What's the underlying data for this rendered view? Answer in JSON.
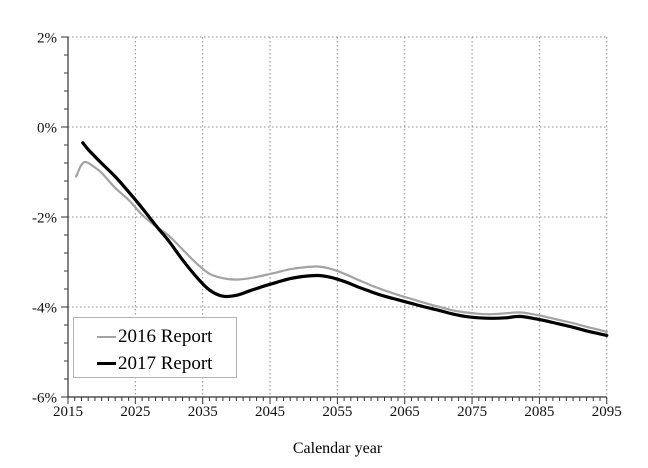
{
  "chart_data": {
    "type": "line",
    "title": "",
    "xlabel": "Calendar year",
    "ylabel": "",
    "x_range": [
      2015,
      2095
    ],
    "y_range": [
      -6,
      2
    ],
    "x_minor_step": 1,
    "y_minor_step": 0.4,
    "grid": "dashed-both-axes",
    "legend_position": "lower-left",
    "colors": {
      "axis": "#333333",
      "grid": "#8c8c8c",
      "text": "#111111",
      "background": "#ffffff",
      "legend_border": "#b3b3b3"
    },
    "xticks": {
      "values": [
        2015,
        2025,
        2035,
        2045,
        2055,
        2065,
        2075,
        2085,
        2095
      ],
      "labels": [
        "2015",
        "2025",
        "2035",
        "2045",
        "2055",
        "2065",
        "2075",
        "2085",
        "2095"
      ]
    },
    "yticks": {
      "values": [
        2,
        0,
        -2,
        -4,
        -6
      ],
      "labels": [
        "2%",
        "0%",
        "-2%",
        "-4%",
        "-6%"
      ]
    },
    "series": [
      {
        "name": "2016 Report",
        "color": "#a3a3a3",
        "width": 2.2,
        "points": [
          [
            2016.2,
            -1.1
          ],
          [
            2017,
            -0.84
          ],
          [
            2017.7,
            -0.78
          ],
          [
            2019,
            -0.9
          ],
          [
            2020,
            -1.02
          ],
          [
            2022,
            -1.35
          ],
          [
            2024,
            -1.62
          ],
          [
            2026,
            -1.95
          ],
          [
            2028,
            -2.2
          ],
          [
            2030,
            -2.42
          ],
          [
            2032,
            -2.72
          ],
          [
            2034,
            -3.02
          ],
          [
            2036,
            -3.26
          ],
          [
            2038,
            -3.36
          ],
          [
            2040,
            -3.39
          ],
          [
            2042,
            -3.36
          ],
          [
            2044,
            -3.3
          ],
          [
            2046,
            -3.23
          ],
          [
            2048,
            -3.16
          ],
          [
            2050,
            -3.12
          ],
          [
            2052,
            -3.1
          ],
          [
            2054,
            -3.15
          ],
          [
            2056,
            -3.26
          ],
          [
            2058,
            -3.39
          ],
          [
            2060,
            -3.52
          ],
          [
            2062,
            -3.63
          ],
          [
            2064,
            -3.73
          ],
          [
            2066,
            -3.82
          ],
          [
            2068,
            -3.91
          ],
          [
            2070,
            -3.99
          ],
          [
            2072,
            -4.07
          ],
          [
            2074,
            -4.12
          ],
          [
            2076,
            -4.15
          ],
          [
            2078,
            -4.16
          ],
          [
            2080,
            -4.14
          ],
          [
            2082,
            -4.12
          ],
          [
            2084,
            -4.16
          ],
          [
            2086,
            -4.22
          ],
          [
            2088,
            -4.29
          ],
          [
            2090,
            -4.36
          ],
          [
            2092,
            -4.44
          ],
          [
            2095,
            -4.55
          ]
        ]
      },
      {
        "name": "2017 Report",
        "color": "#000000",
        "width": 3.2,
        "points": [
          [
            2017.2,
            -0.35
          ],
          [
            2018,
            -0.5
          ],
          [
            2020,
            -0.81
          ],
          [
            2022,
            -1.1
          ],
          [
            2024,
            -1.44
          ],
          [
            2026,
            -1.8
          ],
          [
            2028,
            -2.18
          ],
          [
            2030,
            -2.54
          ],
          [
            2032,
            -2.95
          ],
          [
            2034,
            -3.32
          ],
          [
            2036,
            -3.62
          ],
          [
            2038,
            -3.76
          ],
          [
            2040,
            -3.74
          ],
          [
            2042,
            -3.64
          ],
          [
            2044,
            -3.54
          ],
          [
            2046,
            -3.45
          ],
          [
            2048,
            -3.37
          ],
          [
            2050,
            -3.32
          ],
          [
            2052,
            -3.3
          ],
          [
            2054,
            -3.34
          ],
          [
            2056,
            -3.43
          ],
          [
            2058,
            -3.55
          ],
          [
            2060,
            -3.66
          ],
          [
            2062,
            -3.76
          ],
          [
            2064,
            -3.84
          ],
          [
            2066,
            -3.92
          ],
          [
            2068,
            -4.0
          ],
          [
            2070,
            -4.07
          ],
          [
            2072,
            -4.15
          ],
          [
            2074,
            -4.21
          ],
          [
            2076,
            -4.24
          ],
          [
            2078,
            -4.25
          ],
          [
            2080,
            -4.24
          ],
          [
            2082,
            -4.21
          ],
          [
            2084,
            -4.25
          ],
          [
            2086,
            -4.31
          ],
          [
            2088,
            -4.38
          ],
          [
            2090,
            -4.45
          ],
          [
            2092,
            -4.53
          ],
          [
            2095,
            -4.63
          ]
        ]
      }
    ]
  }
}
